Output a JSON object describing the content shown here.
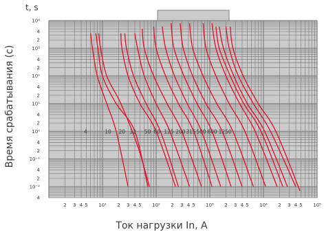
{
  "chart_data": {
    "type": "line",
    "title": "",
    "y_unit_label": "t, s",
    "ylabel": "Время срабатывания (с)",
    "xlabel": "Ток нагрузки In, А",
    "xscale": "log",
    "yscale": "log",
    "xlim": [
      1,
      100000
    ],
    "ylim": [
      0.004,
      10000
    ],
    "grid": true,
    "x_ticks": [
      {
        "v": 2,
        "t": "2"
      },
      {
        "v": 3,
        "t": "3"
      },
      {
        "v": 4,
        "t": "4"
      },
      {
        "v": 5,
        "t": "5"
      },
      {
        "v": 10,
        "t": "10¹"
      },
      {
        "v": 20,
        "t": "2"
      },
      {
        "v": 30,
        "t": "3"
      },
      {
        "v": 40,
        "t": "4"
      },
      {
        "v": 50,
        "t": "5"
      },
      {
        "v": 100,
        "t": "10²"
      },
      {
        "v": 200,
        "t": "2"
      },
      {
        "v": 300,
        "t": "3"
      },
      {
        "v": 400,
        "t": "4"
      },
      {
        "v": 500,
        "t": "5"
      },
      {
        "v": 1000,
        "t": "10³"
      },
      {
        "v": 2000,
        "t": "2"
      },
      {
        "v": 3000,
        "t": "3"
      },
      {
        "v": 4000,
        "t": "4"
      },
      {
        "v": 5000,
        "t": "5"
      },
      {
        "v": 10000,
        "t": "10⁴"
      },
      {
        "v": 20000,
        "t": "2"
      },
      {
        "v": 30000,
        "t": "3"
      },
      {
        "v": 40000,
        "t": "4"
      },
      {
        "v": 50000,
        "t": "5"
      },
      {
        "v": 100000,
        "t": "10⁵"
      }
    ],
    "y_ticks": [
      {
        "v": 10000,
        "t": "10⁴"
      },
      {
        "v": 4000,
        "t": "4"
      },
      {
        "v": 2000,
        "t": "2"
      },
      {
        "v": 1000,
        "t": "10³"
      },
      {
        "v": 400,
        "t": "4"
      },
      {
        "v": 200,
        "t": "2"
      },
      {
        "v": 100,
        "t": "10²"
      },
      {
        "v": 40,
        "t": "4"
      },
      {
        "v": 20,
        "t": "2"
      },
      {
        "v": 10,
        "t": "10¹"
      },
      {
        "v": 4,
        "t": "4"
      },
      {
        "v": 2,
        "t": "2"
      },
      {
        "v": 1,
        "t": "10⁰"
      },
      {
        "v": 0.4,
        "t": "4"
      },
      {
        "v": 0.2,
        "t": "2"
      },
      {
        "v": 0.1,
        "t": "10⁻¹"
      },
      {
        "v": 0.04,
        "t": "4"
      },
      {
        "v": 0.02,
        "t": "2"
      },
      {
        "v": 0.01,
        "t": "10⁻²"
      },
      {
        "v": 0.004,
        "t": "4"
      }
    ],
    "ratings": [
      {
        "label": "4",
        "x": 4.5
      },
      {
        "label": "10",
        "x": 11
      },
      {
        "label": "20",
        "x": 20
      },
      {
        "label": "32",
        "x": 32
      },
      {
        "label": "50",
        "x": 60
      },
      {
        "label": "80",
        "x": 90
      },
      {
        "label": "125",
        "x": 140
      },
      {
        "label": "200",
        "x": 230
      },
      {
        "label": "315",
        "x": 360
      },
      {
        "label": "500",
        "x": 560
      },
      {
        "label": "800",
        "x": 900
      },
      {
        "label": "1250",
        "x": 1450
      }
    ],
    "series": [
      {
        "x": [
          6.0,
          6.5,
          8,
          12,
          18,
          30
        ],
        "y": [
          3500,
          1000,
          100,
          10,
          1,
          0.01
        ]
      },
      {
        "x": [
          7.5,
          8.2,
          10,
          18,
          40,
          70
        ],
        "y": [
          3500,
          1000,
          100,
          10,
          1,
          0.01
        ]
      },
      {
        "x": [
          8.5,
          9.2,
          12,
          22,
          45,
          75
        ],
        "y": [
          3500,
          1000,
          100,
          10,
          0.3,
          0.01
        ]
      },
      {
        "x": [
          22,
          23,
          30,
          50,
          100,
          230
        ],
        "y": [
          3500,
          1000,
          100,
          10,
          1,
          0.01
        ]
      },
      {
        "x": [
          26,
          28,
          38,
          65,
          120,
          260
        ],
        "y": [
          3500,
          1000,
          100,
          10,
          1,
          0.01
        ]
      },
      {
        "x": [
          40,
          45,
          60,
          100,
          180,
          420
        ],
        "y": [
          3500,
          1000,
          100,
          10,
          1,
          0.01
        ]
      },
      {
        "x": [
          55,
          60,
          90,
          160,
          300,
          700
        ],
        "y": [
          5000,
          1000,
          100,
          10,
          1,
          0.01
        ]
      },
      {
        "x": [
          90,
          100,
          150,
          260,
          500,
          1100
        ],
        "y": [
          6000,
          1000,
          100,
          10,
          1,
          0.01
        ]
      },
      {
        "x": [
          130,
          150,
          220,
          380,
          700,
          1600
        ],
        "y": [
          6000,
          1000,
          100,
          10,
          1,
          0.01
        ]
      },
      {
        "x": [
          190,
          215,
          330,
          580,
          1100,
          2500
        ],
        "y": [
          8000,
          1000,
          100,
          10,
          1,
          0.01
        ]
      },
      {
        "x": [
          280,
          320,
          480,
          850,
          1700,
          4000
        ],
        "y": [
          8000,
          1000,
          100,
          10,
          1,
          0.01
        ]
      },
      {
        "x": [
          420,
          480,
          750,
          1350,
          2700,
          6500
        ],
        "y": [
          8000,
          1000,
          100,
          10,
          1,
          0.01
        ]
      },
      {
        "x": [
          750,
          850,
          1300,
          2300,
          4500,
          11000
        ],
        "y": [
          8000,
          1000,
          100,
          10,
          1,
          0.01
        ]
      },
      {
        "x": [
          1100,
          1300,
          2000,
          3600,
          7000,
          18000
        ],
        "y": [
          8000,
          1000,
          100,
          10,
          1,
          0.01
        ]
      },
      {
        "x": [
          1300,
          1500,
          2400,
          4300,
          9000,
          23000
        ],
        "y": [
          6000,
          1000,
          100,
          10,
          1,
          0.01
        ]
      },
      {
        "x": [
          1500,
          1800,
          2800,
          5000,
          10500,
          28000
        ],
        "y": [
          6000,
          1000,
          100,
          10,
          1,
          0.01
        ]
      },
      {
        "x": [
          2000,
          2300,
          3400,
          6500,
          13500,
          40000
        ],
        "y": [
          6000,
          1000,
          100,
          10,
          1,
          0.01
        ]
      },
      {
        "x": [
          2400,
          2700,
          4200,
          8000,
          17000,
          48000
        ],
        "y": [
          6000,
          1000,
          100,
          10,
          1,
          0.007
        ]
      }
    ],
    "colors": {
      "curves": "#e0182d",
      "grid": "#808080",
      "plot_bg": "#cbcbcb",
      "label": "#3a3a3a"
    }
  }
}
